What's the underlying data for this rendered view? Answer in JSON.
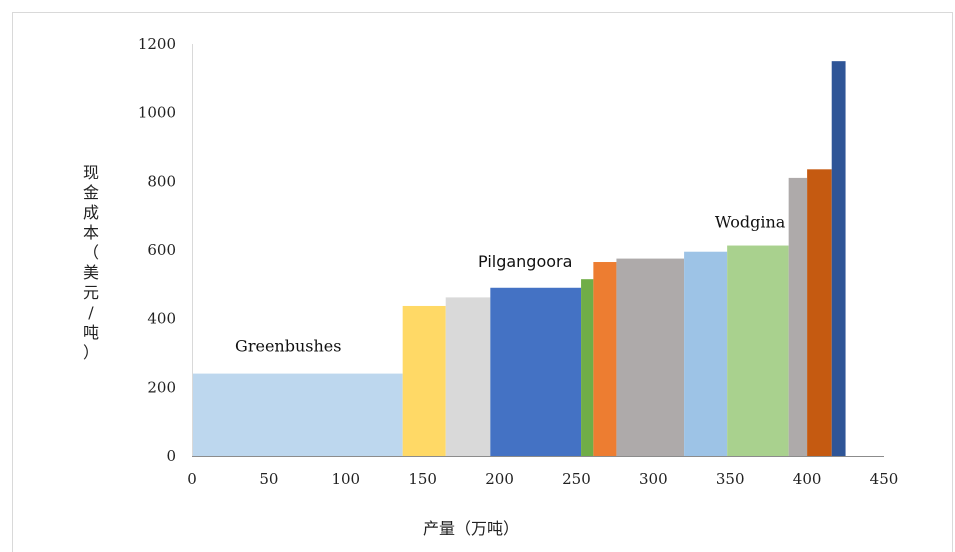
{
  "chart_data": {
    "type": "bar",
    "variant": "cost-curve",
    "title": "",
    "xlabel": "产量（万吨）",
    "ylabel": "现金成本（美元/吨）",
    "xlim": [
      0,
      450
    ],
    "ylim": [
      0,
      1200
    ],
    "xticks": [
      0,
      50,
      100,
      150,
      200,
      250,
      300,
      350,
      400,
      450
    ],
    "yticks": [
      0,
      200,
      400,
      600,
      800,
      1000,
      1200
    ],
    "grid": false,
    "bars": [
      {
        "x0": 0,
        "x1": 137,
        "value": 240,
        "color": "#bdd7ee"
      },
      {
        "x0": 137,
        "x1": 165,
        "value": 437,
        "color": "#ffd966"
      },
      {
        "x0": 165,
        "x1": 194,
        "value": 462,
        "color": "#d9d9d9"
      },
      {
        "x0": 194,
        "x1": 253,
        "value": 490,
        "color": "#4472c4"
      },
      {
        "x0": 253,
        "x1": 261,
        "value": 515,
        "color": "#70ad47"
      },
      {
        "x0": 261,
        "x1": 276,
        "value": 565,
        "color": "#ed7d31"
      },
      {
        "x0": 276,
        "x1": 320,
        "value": 575,
        "color": "#aeaaaa"
      },
      {
        "x0": 320,
        "x1": 348,
        "value": 595,
        "color": "#9dc3e6"
      },
      {
        "x0": 348,
        "x1": 388,
        "value": 613,
        "color": "#a9d18e"
      },
      {
        "x0": 388,
        "x1": 400,
        "value": 810,
        "color": "#aeaaaa"
      },
      {
        "x0": 400,
        "x1": 416,
        "value": 835,
        "color": "#c55a11"
      },
      {
        "x0": 416,
        "x1": 425,
        "value": 1150,
        "color": "#2f5597"
      }
    ],
    "annotations": [
      {
        "text": "Greenbushes",
        "x": 28,
        "y": 305,
        "style": "serif"
      },
      {
        "text": "Pilgangoora",
        "x": 186,
        "y": 550,
        "style": "sans"
      },
      {
        "text": "Wodgina",
        "x": 340,
        "y": 665,
        "style": "serif"
      }
    ]
  }
}
